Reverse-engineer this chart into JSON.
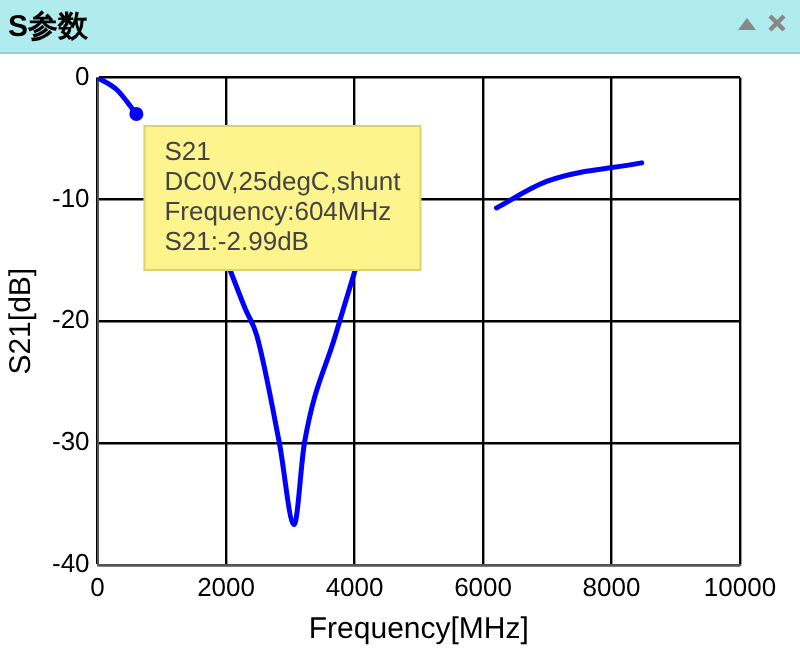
{
  "chart_data": {
    "type": "line",
    "title": "S参数",
    "xlabel": "Frequency[MHz]",
    "ylabel": "S21[dB]",
    "series": [
      {
        "color": "#0000ff",
        "x": [
          0,
          300,
          604,
          1000,
          2070,
          2300,
          2480,
          2830,
          3060,
          3220,
          3700,
          4010,
          5000,
          6210,
          7000,
          8470
        ],
        "values": [
          0,
          -1,
          -2.99,
          null,
          -15.9,
          -19,
          -21.2,
          -30,
          -36.7,
          -30,
          -21.2,
          -15.8,
          null,
          -10.7,
          -8.5,
          -7
        ]
      }
    ],
    "xlim": [
      0,
      10000
    ],
    "xticks": [
      0,
      2000,
      4000,
      6000,
      8000,
      10000
    ],
    "ylim": [
      -40,
      0
    ],
    "yticks": [
      -40,
      -30,
      -20,
      -10,
      0
    ],
    "grid": true,
    "legend": false,
    "marker": "none",
    "line_style": "solid",
    "annotations": [
      {
        "text": "S21\nDC0V,25degC,shunt\nFrequency:604MHz\nS21:-2.99dB",
        "x": 604,
        "y": -2.99
      }
    ]
  }
}
